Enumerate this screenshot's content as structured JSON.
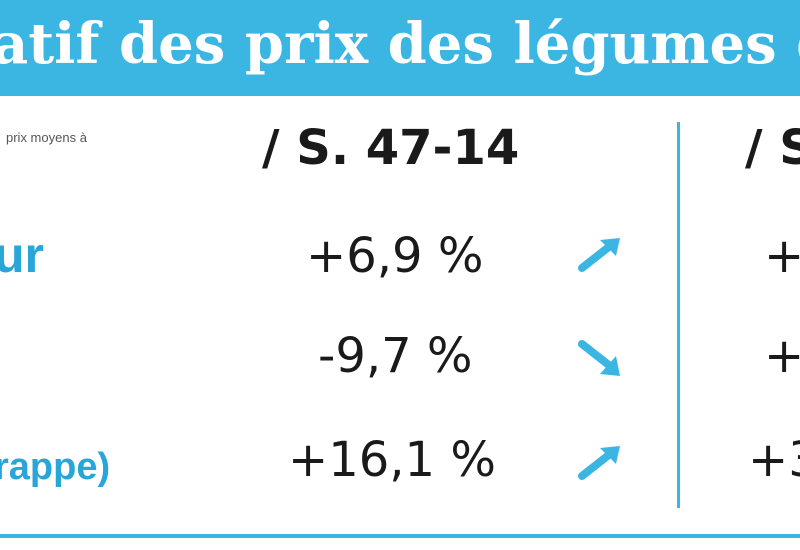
{
  "banner": {
    "title": "atif des prix des légumes de la sem"
  },
  "table": {
    "note": "prix moyens à",
    "columns": [
      {
        "header": "/ S. 47-14"
      },
      {
        "header": "/ S"
      }
    ],
    "rows": [
      {
        "label": "ur",
        "value": "+6,9 %",
        "trend": "up",
        "next_value": "+"
      },
      {
        "label": "",
        "value": "-9,7 %",
        "trend": "down",
        "next_value": "+"
      },
      {
        "label": "rappe)",
        "value": "+16,1 %",
        "trend": "up",
        "next_value": "+3"
      }
    ]
  },
  "colors": {
    "accent": "#3bb6e3",
    "label": "#29a6d9",
    "text": "#1a1a1a"
  }
}
